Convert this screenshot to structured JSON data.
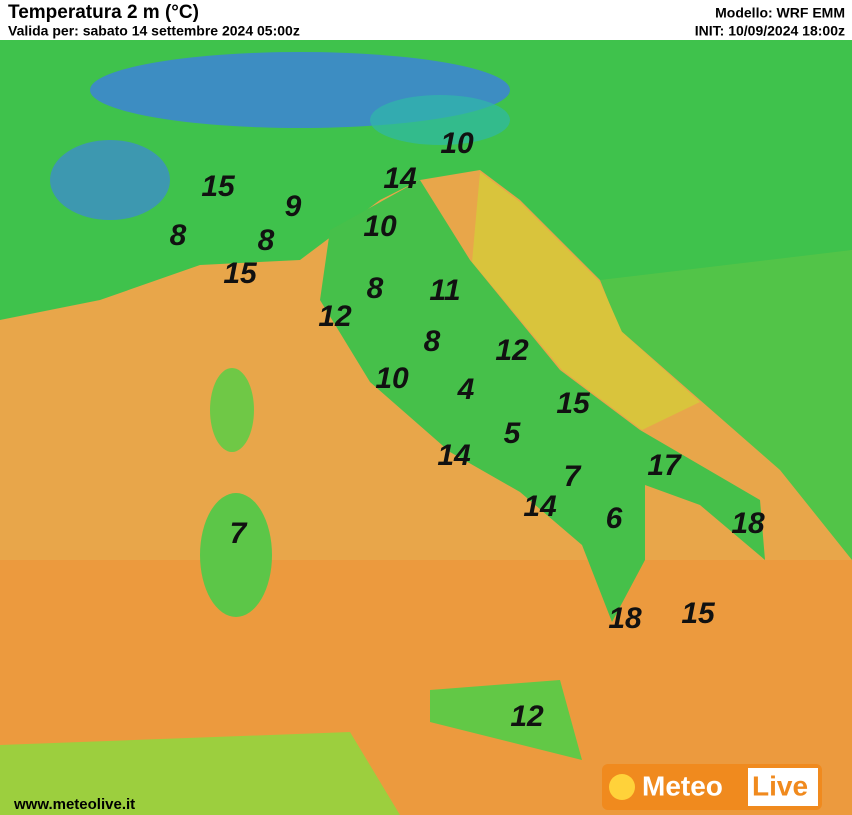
{
  "header": {
    "title": "Temperatura 2 m (°C)",
    "subtitle": "Valida per: sabato 14 settembre 2024 05:00z",
    "model": "Modello: WRF EMM",
    "init": "INIT: 10/09/2024 18:00z"
  },
  "footer": {
    "website": "www.meteolive.it",
    "logo_left": "Meteo",
    "logo_right": "Live"
  },
  "labels": [
    10,
    14,
    15,
    9,
    10,
    8,
    8,
    15,
    8,
    11,
    12,
    8,
    12,
    10,
    4,
    15,
    5,
    14,
    17,
    7,
    14,
    6,
    18,
    7,
    18,
    15,
    12
  ]
}
